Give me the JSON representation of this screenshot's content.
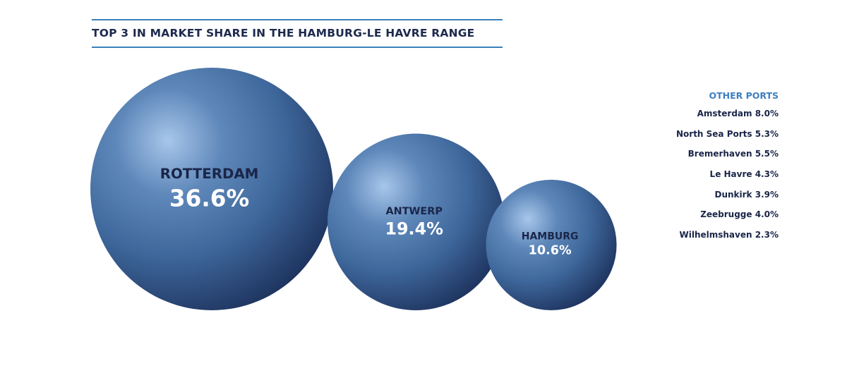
{
  "chart_data": {
    "type": "bubble",
    "title": "TOP 3 IN MARKET SHARE IN THE HAMBURG-LE HAVRE RANGE",
    "unit": "%",
    "series": [
      {
        "name": "ROTTERDAM",
        "label": "36.6%",
        "value": 36.6
      },
      {
        "name": "ANTWERP",
        "label": "19.4%",
        "value": 19.4
      },
      {
        "name": "HAMBURG",
        "label": "10.6%",
        "value": 10.6
      }
    ],
    "legend": {
      "placement": "right",
      "heading": "OTHER PORTS",
      "items": [
        {
          "text": "Amsterdam 8.0%",
          "value": 8.0
        },
        {
          "text": "North Sea Ports 5.3%",
          "value": 5.3
        },
        {
          "text": "Bremerhaven 5.5%",
          "value": 5.5
        },
        {
          "text": "Le Havre 4.3%",
          "value": 4.3
        },
        {
          "text": "Dunkirk 3.9%",
          "value": 3.9
        },
        {
          "text": "Zeebrugge 4.0%",
          "value": 4.0
        },
        {
          "text": "Wilhelmshaven 2.3%",
          "value": 2.3
        }
      ]
    },
    "colors": {
      "bubble_light": "#a7c6ea",
      "bubble_mid": "#4a74a6",
      "bubble_dark": "#1a2d57",
      "title_rule": "#3a7fb8",
      "legend_heading": "#3d7ec0"
    }
  }
}
